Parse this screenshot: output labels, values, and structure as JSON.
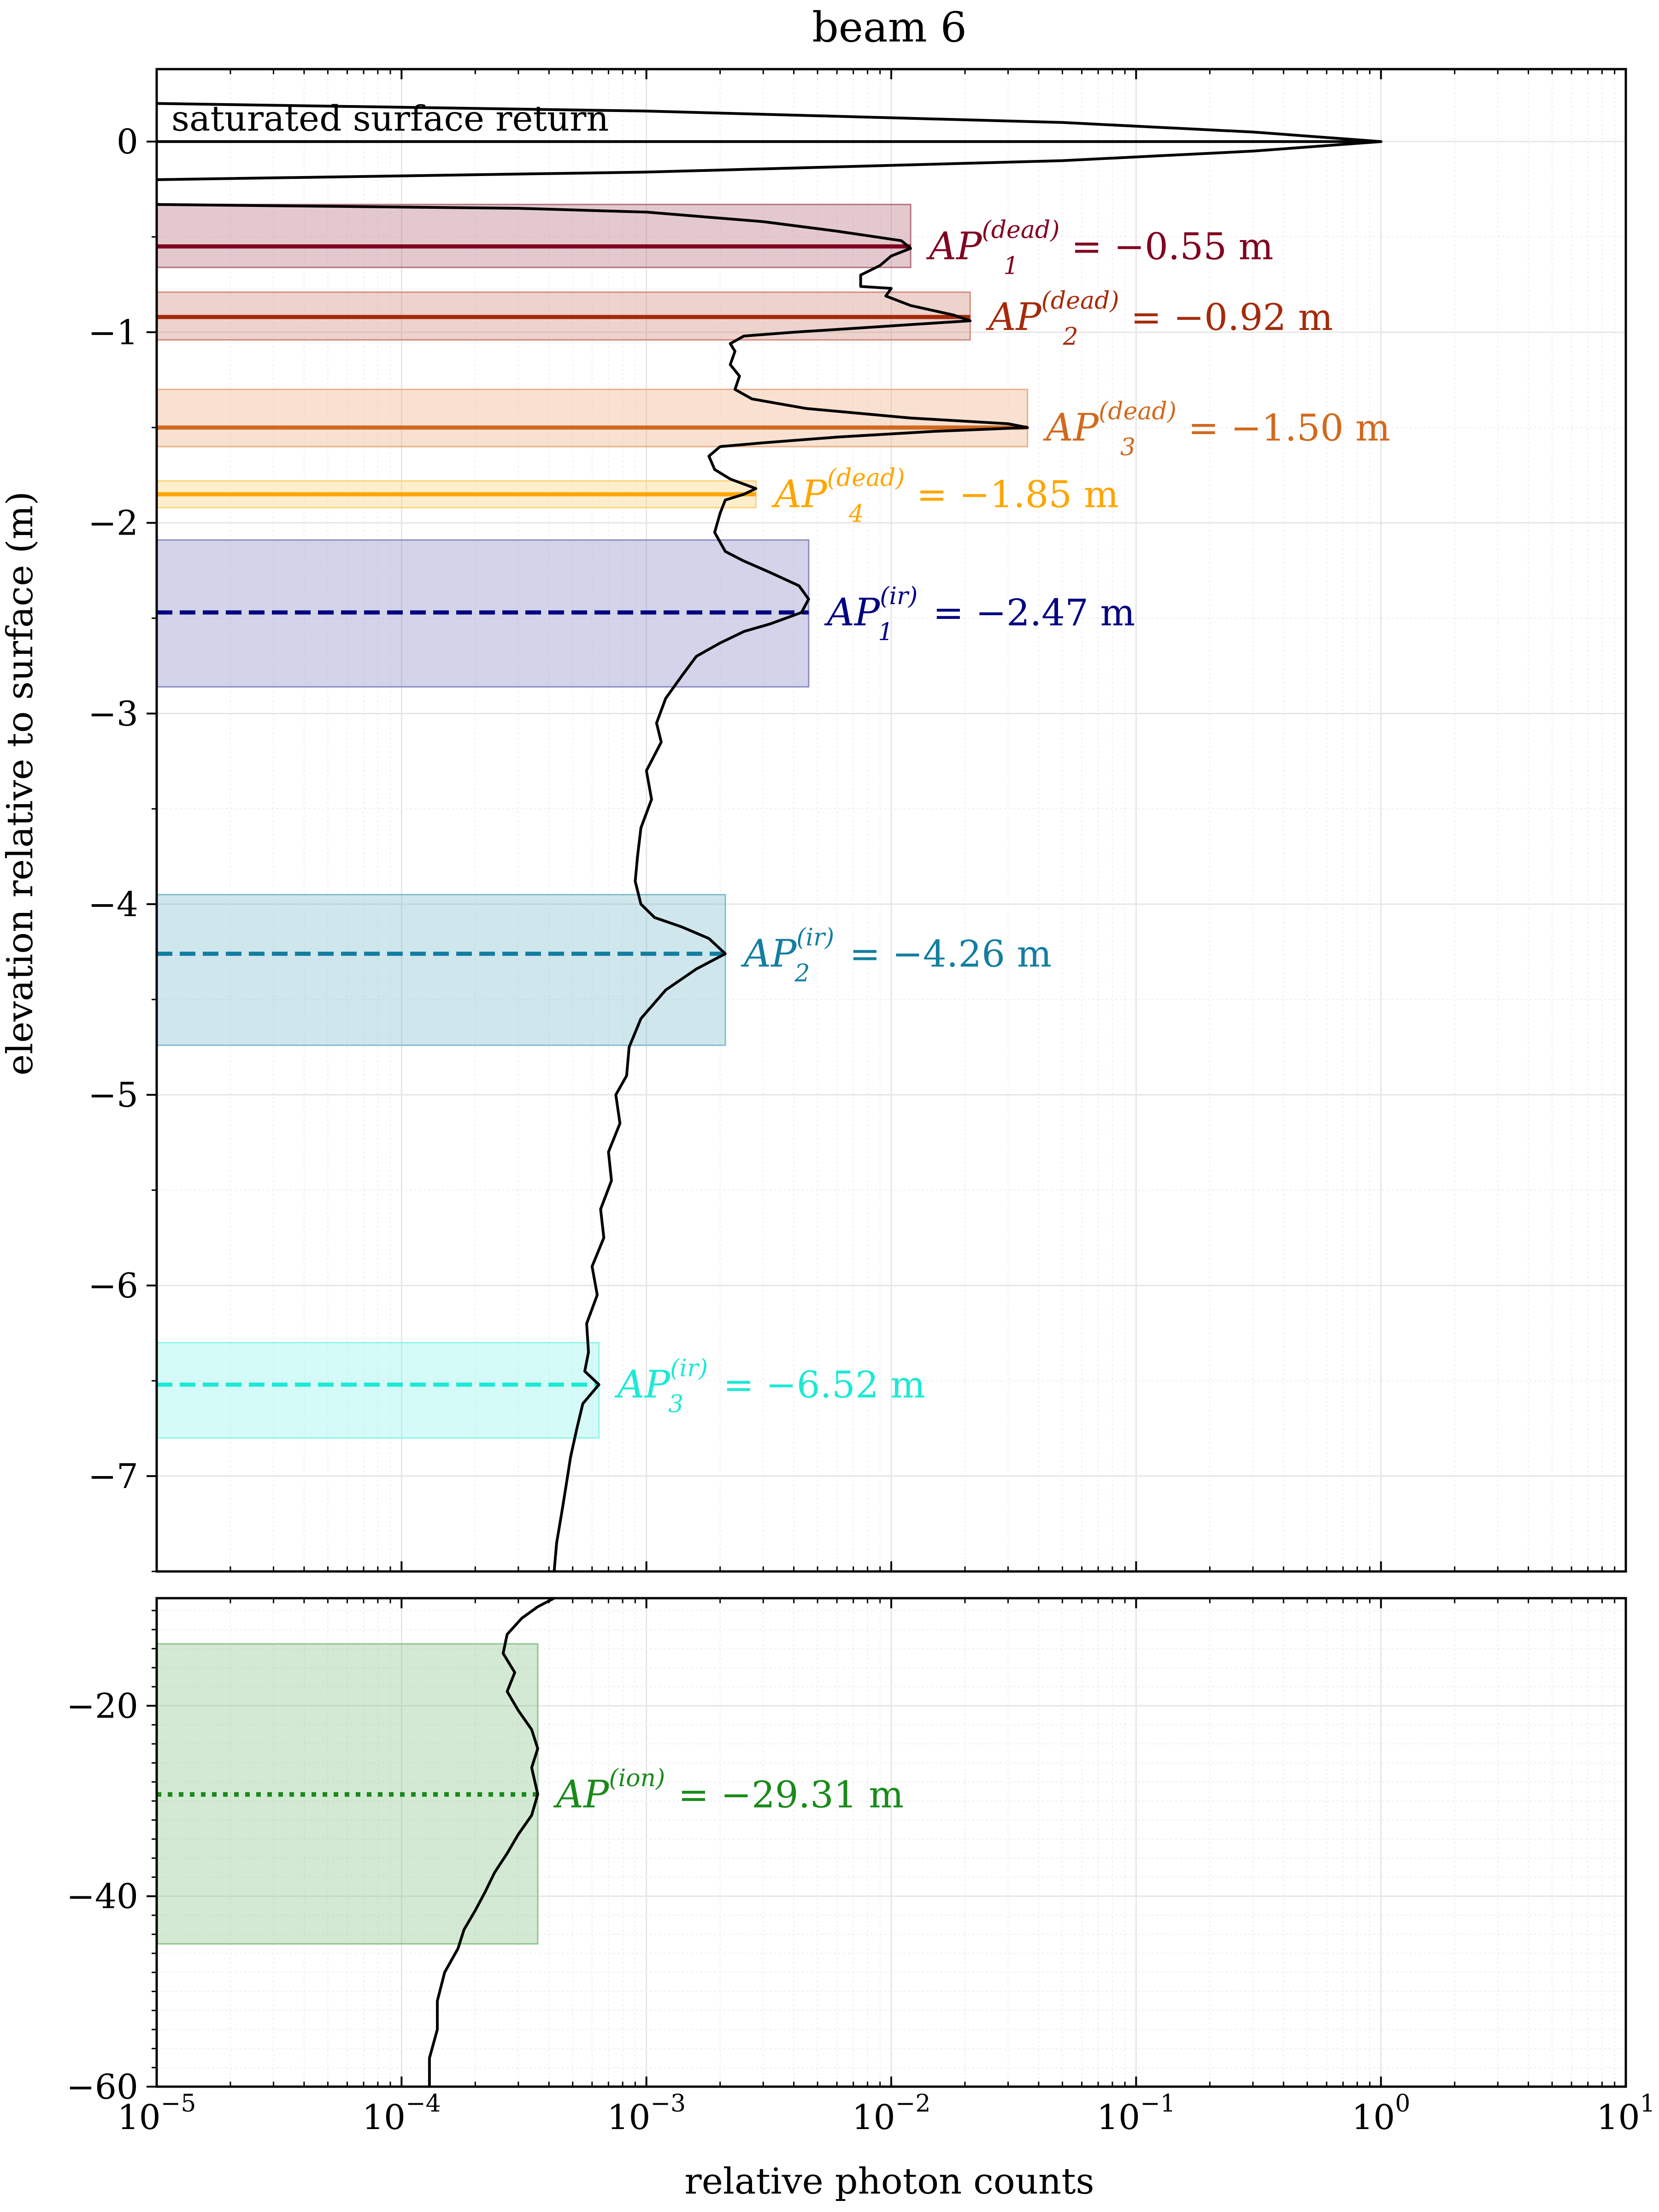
{
  "chart_data": {
    "type": "line",
    "title": "beam 6",
    "xlabel": "relative photon counts",
    "ylabel": "elevation relative to surface (m)",
    "xscale": "log",
    "xlim": [
      1e-05,
      10
    ],
    "xticks": [
      {
        "value": 1e-05,
        "mantissa": "10",
        "exponent": "−5"
      },
      {
        "value": 0.0001,
        "mantissa": "10",
        "exponent": "−4"
      },
      {
        "value": 0.001,
        "mantissa": "10",
        "exponent": "−3"
      },
      {
        "value": 0.01,
        "mantissa": "10",
        "exponent": "−2"
      },
      {
        "value": 0.1,
        "mantissa": "10",
        "exponent": "−1"
      },
      {
        "value": 1,
        "mantissa": "10",
        "exponent": "0"
      },
      {
        "value": 10,
        "mantissa": "10",
        "exponent": "1"
      }
    ],
    "grid": true,
    "panels": [
      {
        "name": "upper",
        "ylim": [
          -7.5,
          0.38
        ],
        "yticks": [
          {
            "value": 0,
            "label": "0"
          },
          {
            "value": -1,
            "label": "−1"
          },
          {
            "value": -2,
            "label": "−2"
          },
          {
            "value": -3,
            "label": "−3"
          },
          {
            "value": -4,
            "label": "−4"
          },
          {
            "value": -5,
            "label": "−5"
          },
          {
            "value": -6,
            "label": "−6"
          },
          {
            "value": -7,
            "label": "−7"
          }
        ]
      },
      {
        "name": "lower",
        "ylim": [
          -60,
          -8.7
        ],
        "yticks": [
          {
            "value": -20,
            "label": "−20"
          },
          {
            "value": -40,
            "label": "−40"
          },
          {
            "value": -60,
            "label": "−60"
          }
        ]
      }
    ],
    "surface_return": {
      "label": "saturated surface return",
      "peak": 1,
      "points": [
        [
          1e-05,
          0.2
        ],
        [
          0.001,
          0.16
        ],
        [
          0.05,
          0.1
        ],
        [
          0.3,
          0.05
        ],
        [
          1,
          0
        ],
        [
          0.3,
          -0.05
        ],
        [
          0.05,
          -0.1
        ],
        [
          0.001,
          -0.16
        ],
        [
          1e-05,
          -0.2
        ]
      ]
    },
    "profile": [
      [
        1e-05,
        -0.33
      ],
      [
        0.0003,
        -0.35
      ],
      [
        0.001,
        -0.37
      ],
      [
        0.003,
        -0.42
      ],
      [
        0.006,
        -0.47
      ],
      [
        0.011,
        -0.52
      ],
      [
        0.012,
        -0.56
      ],
      [
        0.01,
        -0.6
      ],
      [
        0.009,
        -0.65
      ],
      [
        0.0075,
        -0.7
      ],
      [
        0.0075,
        -0.76
      ],
      [
        0.01,
        -0.77
      ],
      [
        0.0095,
        -0.81
      ],
      [
        0.012,
        -0.86
      ],
      [
        0.018,
        -0.91
      ],
      [
        0.021,
        -0.94
      ],
      [
        0.012,
        -0.96
      ],
      [
        0.007,
        -0.98
      ],
      [
        0.004,
        -1.0
      ],
      [
        0.0025,
        -1.02
      ],
      [
        0.0022,
        -1.06
      ],
      [
        0.0023,
        -1.1
      ],
      [
        0.0022,
        -1.17
      ],
      [
        0.0024,
        -1.23
      ],
      [
        0.0023,
        -1.3
      ],
      [
        0.0027,
        -1.35
      ],
      [
        0.0045,
        -1.4
      ],
      [
        0.012,
        -1.45
      ],
      [
        0.03,
        -1.48
      ],
      [
        0.036,
        -1.5
      ],
      [
        0.015,
        -1.52
      ],
      [
        0.006,
        -1.55
      ],
      [
        0.003,
        -1.58
      ],
      [
        0.002,
        -1.6
      ],
      [
        0.0018,
        -1.65
      ],
      [
        0.0019,
        -1.72
      ],
      [
        0.0022,
        -1.77
      ],
      [
        0.0028,
        -1.82
      ],
      [
        0.0025,
        -1.85
      ],
      [
        0.0021,
        -1.88
      ],
      [
        0.002,
        -1.95
      ],
      [
        0.0019,
        -2.05
      ],
      [
        0.0021,
        -2.15
      ],
      [
        0.0025,
        -2.2
      ],
      [
        0.0032,
        -2.26
      ],
      [
        0.0042,
        -2.33
      ],
      [
        0.0046,
        -2.4
      ],
      [
        0.0043,
        -2.47
      ],
      [
        0.0032,
        -2.53
      ],
      [
        0.0025,
        -2.57
      ],
      [
        0.002,
        -2.63
      ],
      [
        0.0016,
        -2.7
      ],
      [
        0.0014,
        -2.8
      ],
      [
        0.0012,
        -2.92
      ],
      [
        0.0011,
        -3.05
      ],
      [
        0.00115,
        -3.15
      ],
      [
        0.001,
        -3.3
      ],
      [
        0.00105,
        -3.45
      ],
      [
        0.00095,
        -3.6
      ],
      [
        0.00092,
        -3.75
      ],
      [
        0.0009,
        -3.88
      ],
      [
        0.00095,
        -4.0
      ],
      [
        0.00108,
        -4.07
      ],
      [
        0.0014,
        -4.12
      ],
      [
        0.0018,
        -4.18
      ],
      [
        0.0021,
        -4.26
      ],
      [
        0.0016,
        -4.34
      ],
      [
        0.0012,
        -4.45
      ],
      [
        0.00095,
        -4.6
      ],
      [
        0.00085,
        -4.75
      ],
      [
        0.00083,
        -4.9
      ],
      [
        0.00075,
        -5.0
      ],
      [
        0.00078,
        -5.15
      ],
      [
        0.0007,
        -5.3
      ],
      [
        0.00072,
        -5.45
      ],
      [
        0.00065,
        -5.6
      ],
      [
        0.00067,
        -5.75
      ],
      [
        0.0006,
        -5.9
      ],
      [
        0.00063,
        -6.05
      ],
      [
        0.00057,
        -6.2
      ],
      [
        0.00058,
        -6.35
      ],
      [
        0.00056,
        -6.45
      ],
      [
        0.00064,
        -6.52
      ],
      [
        0.00055,
        -6.62
      ],
      [
        0.00052,
        -6.75
      ],
      [
        0.00049,
        -6.9
      ],
      [
        0.00047,
        -7.05
      ],
      [
        0.00045,
        -7.2
      ],
      [
        0.00043,
        -7.35
      ],
      [
        0.00042,
        -7.5
      ]
    ],
    "profile_lower": [
      [
        0.00042,
        -8.7
      ],
      [
        0.00036,
        -9.6
      ],
      [
        0.00031,
        -10.8
      ],
      [
        0.00027,
        -12.5
      ],
      [
        0.00026,
        -14.5
      ],
      [
        0.00029,
        -16.5
      ],
      [
        0.00027,
        -18.5
      ],
      [
        0.0003,
        -20.5
      ],
      [
        0.00034,
        -22.5
      ],
      [
        0.00036,
        -24.5
      ],
      [
        0.00034,
        -26.5
      ],
      [
        0.00036,
        -29.3
      ],
      [
        0.00034,
        -31.5
      ],
      [
        0.0003,
        -33.5
      ],
      [
        0.00027,
        -35.5
      ],
      [
        0.00024,
        -37.5
      ],
      [
        0.00022,
        -39.5
      ],
      [
        0.0002,
        -41.5
      ],
      [
        0.00018,
        -43.5
      ],
      [
        0.00017,
        -45.5
      ],
      [
        0.00015,
        -48
      ],
      [
        0.00014,
        -51
      ],
      [
        0.00014,
        -54
      ],
      [
        0.00013,
        -57
      ],
      [
        0.00013,
        -60
      ]
    ],
    "afterpulses": [
      {
        "panel": "upper",
        "name": "AP",
        "sup": "(dead)",
        "sub": "1",
        "value_text": "= −0.55 m",
        "y": -0.55,
        "x_peak": 0.012,
        "band": [
          -0.33,
          -0.66
        ],
        "color": "#800020",
        "band_color": "#b5727f",
        "line_style": "solid"
      },
      {
        "panel": "upper",
        "name": "AP",
        "sup": "(dead)",
        "sub": "2",
        "value_text": "= −0.92 m",
        "y": -0.92,
        "x_peak": 0.021,
        "band": [
          -0.79,
          -1.04
        ],
        "color": "#a52a0a",
        "band_color": "#d18c7c",
        "line_style": "solid"
      },
      {
        "panel": "upper",
        "name": "AP",
        "sup": "(dead)",
        "sub": "3",
        "value_text": "= −1.50 m",
        "y": -1.5,
        "x_peak": 0.036,
        "band": [
          -1.3,
          -1.6
        ],
        "color": "#d2691e",
        "band_color": "#edaf86",
        "line_style": "solid"
      },
      {
        "panel": "upper",
        "name": "AP",
        "sup": "(dead)",
        "sub": "4",
        "value_text": "= −1.85 m",
        "y": -1.85,
        "x_peak": 0.0028,
        "band": [
          -1.78,
          -1.92
        ],
        "color": "#ffa500",
        "band_color": "#ffd27a",
        "line_style": "solid"
      },
      {
        "panel": "upper",
        "name": "AP",
        "sup": "(ir)",
        "sub": "1",
        "value_text": "= −2.47 m",
        "y": -2.47,
        "x_peak": 0.0046,
        "band": [
          -2.09,
          -2.86
        ],
        "color": "#000080",
        "band_color": "#8c8cc4",
        "line_style": "dashed"
      },
      {
        "panel": "upper",
        "name": "AP",
        "sup": "(ir)",
        "sub": "2",
        "value_text": "= −4.26 m",
        "y": -4.26,
        "x_peak": 0.0021,
        "band": [
          -3.95,
          -4.74
        ],
        "color": "#137ea0",
        "band_color": "#80bccf",
        "line_style": "dashed"
      },
      {
        "panel": "upper",
        "name": "AP",
        "sup": "(ir)",
        "sub": "3",
        "value_text": "= −6.52 m",
        "y": -6.52,
        "x_peak": 0.00064,
        "band": [
          -6.3,
          -6.8
        ],
        "color": "#1de9d4",
        "band_color": "#8ff5ea",
        "line_style": "dashed"
      },
      {
        "panel": "lower",
        "name": "AP",
        "sup": "(ion)",
        "sub": "",
        "value_text": "= −29.31 m",
        "y": -29.31,
        "x_peak": 0.00036,
        "band": [
          -13.5,
          -45.0
        ],
        "color": "#1a8a1a",
        "band_color": "#8cc58c",
        "line_style": "dotted"
      }
    ]
  },
  "colors": {
    "profile": "#000000",
    "grid": "#e6e6e6"
  }
}
